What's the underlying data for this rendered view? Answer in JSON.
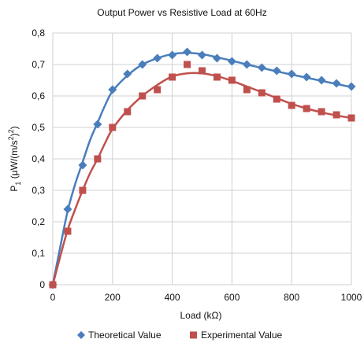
{
  "chart_data": {
    "type": "scatter",
    "title": "Output Power vs Resistive Load at 60Hz",
    "xlabel": "Load (kΩ)",
    "ylabel": {
      "main": "P",
      "sub": "1",
      "rest1": " (μW/(m/s",
      "sup": "2",
      "rest2": ")",
      "sup2": "2",
      "rest3": ")"
    },
    "xlim": [
      0,
      1000
    ],
    "ylim": [
      0,
      0.8
    ],
    "xticks": [
      0,
      200,
      400,
      600,
      800,
      1000
    ],
    "yticks": [
      0,
      0.1,
      0.2,
      0.3,
      0.4,
      0.5,
      0.6,
      0.7,
      0.8
    ],
    "ytick_labels": [
      "0",
      "0,1",
      "0,2",
      "0,3",
      "0,4",
      "0,5",
      "0,6",
      "0,7",
      "0,8"
    ],
    "xtick_labels": [
      "0",
      "200",
      "400",
      "600",
      "800",
      "1000"
    ],
    "grid": true,
    "legend_position": "bottom",
    "series": [
      {
        "name": "Theoretical Value",
        "marker": "diamond",
        "color": "#4a7ebb",
        "x": [
          0,
          50,
          100,
          150,
          200,
          250,
          300,
          350,
          400,
          450,
          500,
          550,
          600,
          650,
          700,
          750,
          800,
          850,
          900,
          950,
          1000
        ],
        "y": [
          0.0,
          0.24,
          0.38,
          0.51,
          0.62,
          0.67,
          0.7,
          0.72,
          0.73,
          0.74,
          0.73,
          0.72,
          0.71,
          0.7,
          0.69,
          0.68,
          0.67,
          0.66,
          0.65,
          0.64,
          0.63
        ],
        "curve": [
          [
            0,
            0.0
          ],
          [
            25,
            0.12
          ],
          [
            50,
            0.235
          ],
          [
            75,
            0.32
          ],
          [
            100,
            0.39
          ],
          [
            125,
            0.46
          ],
          [
            150,
            0.515
          ],
          [
            175,
            0.57
          ],
          [
            200,
            0.615
          ],
          [
            250,
            0.665
          ],
          [
            300,
            0.7
          ],
          [
            350,
            0.72
          ],
          [
            400,
            0.733
          ],
          [
            450,
            0.737
          ],
          [
            500,
            0.733
          ],
          [
            550,
            0.723
          ],
          [
            600,
            0.712
          ],
          [
            650,
            0.7
          ],
          [
            700,
            0.689
          ],
          [
            750,
            0.678
          ],
          [
            800,
            0.668
          ],
          [
            850,
            0.658
          ],
          [
            900,
            0.648
          ],
          [
            950,
            0.638
          ],
          [
            1000,
            0.628
          ]
        ]
      },
      {
        "name": "Experimental Value",
        "marker": "square",
        "color": "#c0504d",
        "x": [
          0,
          50,
          100,
          150,
          200,
          250,
          300,
          350,
          400,
          450,
          500,
          550,
          600,
          650,
          700,
          750,
          800,
          850,
          900,
          950,
          1000
        ],
        "y": [
          0.0,
          0.17,
          0.3,
          0.4,
          0.5,
          0.55,
          0.6,
          0.62,
          0.66,
          0.7,
          0.68,
          0.66,
          0.65,
          0.62,
          0.61,
          0.59,
          0.57,
          0.56,
          0.55,
          0.54,
          0.53
        ],
        "curve": [
          [
            0,
            0.0
          ],
          [
            25,
            0.09
          ],
          [
            50,
            0.175
          ],
          [
            75,
            0.24
          ],
          [
            100,
            0.3
          ],
          [
            125,
            0.355
          ],
          [
            150,
            0.4
          ],
          [
            175,
            0.45
          ],
          [
            200,
            0.495
          ],
          [
            250,
            0.555
          ],
          [
            300,
            0.6
          ],
          [
            350,
            0.635
          ],
          [
            400,
            0.662
          ],
          [
            450,
            0.672
          ],
          [
            500,
            0.672
          ],
          [
            550,
            0.663
          ],
          [
            600,
            0.648
          ],
          [
            650,
            0.63
          ],
          [
            700,
            0.612
          ],
          [
            750,
            0.593
          ],
          [
            800,
            0.575
          ],
          [
            850,
            0.56
          ],
          [
            900,
            0.548
          ],
          [
            950,
            0.538
          ],
          [
            1000,
            0.53
          ]
        ]
      }
    ]
  }
}
